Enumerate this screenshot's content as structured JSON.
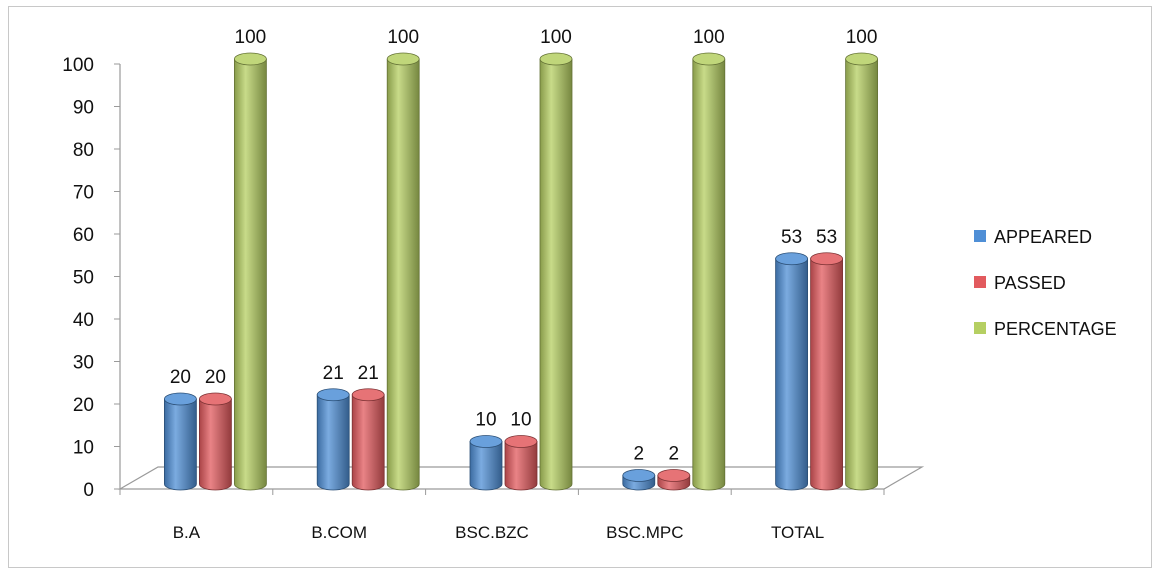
{
  "chart_data": {
    "type": "bar",
    "categories": [
      "B.A",
      "B.COM",
      "BSC.BZC",
      "BSC.MPC",
      "TOTAL"
    ],
    "series": [
      {
        "name": "APPEARED",
        "values": [
          20,
          21,
          10,
          2,
          53
        ],
        "color": "#4f8fd6"
      },
      {
        "name": "PASSED",
        "values": [
          20,
          21,
          10,
          2,
          53
        ],
        "color": "#e25a5e"
      },
      {
        "name": "PERCENTAGE",
        "values": [
          100,
          100,
          100,
          100,
          100
        ],
        "color": "#b5cf62"
      }
    ],
    "ylim": [
      0,
      100
    ],
    "yticks": [
      0,
      10,
      20,
      30,
      40,
      50,
      60,
      70,
      80,
      90,
      100
    ],
    "data_labels": [
      [
        "20",
        "21",
        "10",
        "2",
        "53"
      ],
      [
        "20",
        "21",
        "10",
        "2",
        "53"
      ],
      [
        "100",
        "100",
        "100",
        "100",
        "100"
      ]
    ],
    "legend_position": "right",
    "grid": false,
    "style": "3d-cylinder"
  }
}
